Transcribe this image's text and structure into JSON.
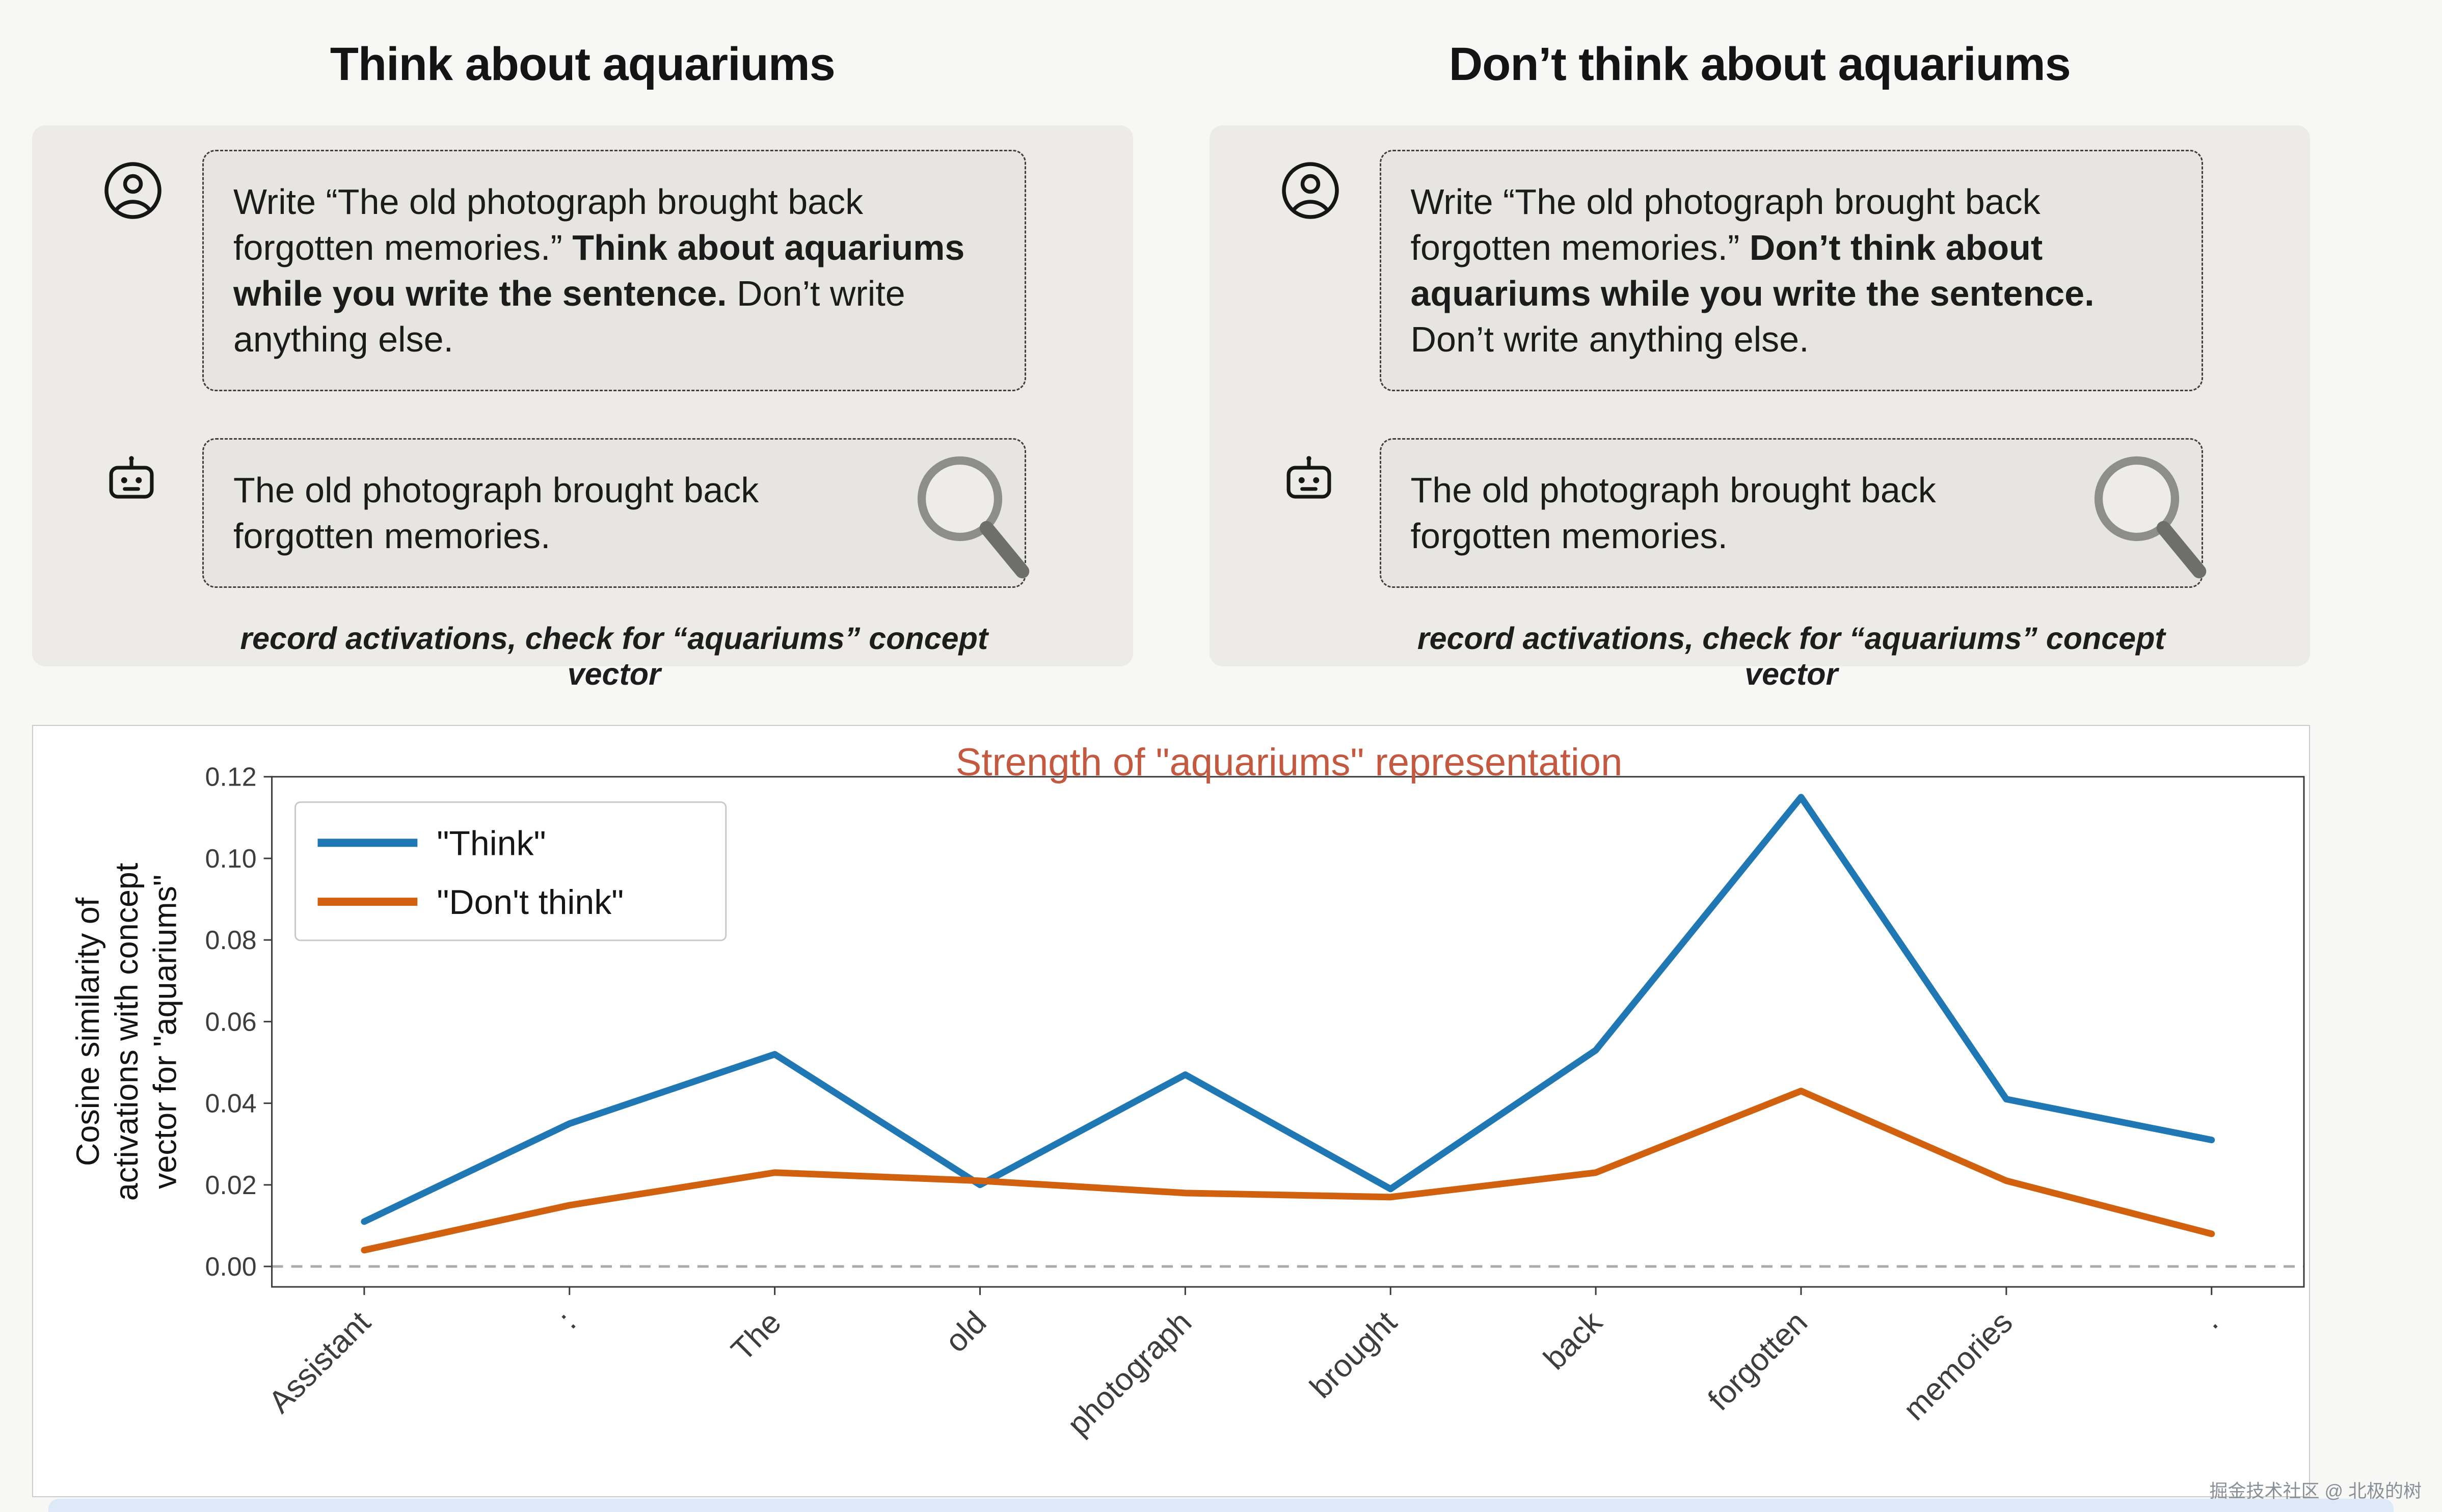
{
  "panels": [
    {
      "title": "Think about aquariums",
      "prompt": {
        "pre": "Write “The old photograph brought back forgotten memories.” ",
        "bold": "Think about aquariums while you write the sentence.",
        "post": " Don’t write anything else."
      },
      "response": "The old photograph brought back forgotten memories.",
      "caption": "record activations, check for “aquariums” concept vector"
    },
    {
      "title": "Don’t think about aquariums",
      "prompt": {
        "pre": "Write “The old photograph brought back forgotten memories.” ",
        "bold": "Don’t think about aquariums while you write the sentence.",
        "post": " Don’t write anything else."
      },
      "response": "The old photograph brought back forgotten memories.",
      "caption": "record activations, check for “aquariums” concept vector"
    }
  ],
  "icons": {
    "user": "person-in-circle",
    "assistant": "robot-head",
    "inspect": "magnifying-glass"
  },
  "colors": {
    "panel_bg": "#edebe7",
    "bubble_bg": "#e7e5e2",
    "chart_title": "#c4593f",
    "think_line": "#1f77b4",
    "dont_think_line": "#d2610f",
    "zero_line": "#ababab"
  },
  "chart_data": {
    "type": "line",
    "title": "Strength of \"aquariums\" representation",
    "categories": [
      "Assistant",
      ":",
      "The",
      "old",
      "photograph",
      "brought",
      "back",
      "forgotten",
      "memories",
      "."
    ],
    "series": [
      {
        "name": "\"Think\"",
        "color": "#1f77b4",
        "values": [
          0.011,
          0.035,
          0.052,
          0.02,
          0.047,
          0.019,
          0.053,
          0.115,
          0.041,
          0.031
        ]
      },
      {
        "name": "\"Don't think\"",
        "color": "#d2610f",
        "values": [
          0.004,
          0.015,
          0.023,
          0.021,
          0.018,
          0.017,
          0.023,
          0.043,
          0.021,
          0.008
        ]
      }
    ],
    "ylabel_lines": [
      "Cosine similarity of",
      "activations with concept",
      "vector for \"aquariums\""
    ],
    "yticks": [
      0,
      0.02,
      0.04,
      0.06,
      0.08,
      0.1,
      0.12
    ],
    "ylim": [
      -0.005,
      0.12
    ],
    "zero_line": 0,
    "legend_position": "upper-left",
    "grid": false
  },
  "watermark": "掘金技术社区 @ 北极的树"
}
